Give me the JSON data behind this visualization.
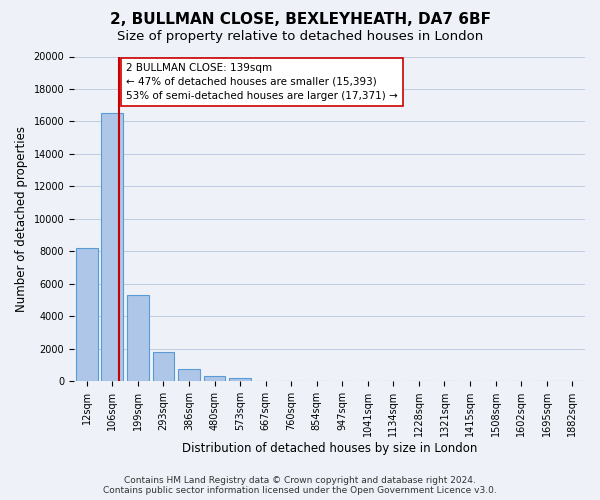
{
  "title": "2, BULLMAN CLOSE, BEXLEYHEATH, DA7 6BF",
  "subtitle": "Size of property relative to detached houses in London",
  "xlabel": "Distribution of detached houses by size in London",
  "ylabel": "Number of detached properties",
  "bar_values": [
    8200,
    16500,
    5300,
    1800,
    750,
    300,
    200,
    0,
    0,
    0,
    0,
    0,
    0,
    0,
    0,
    0,
    0,
    0,
    0,
    0
  ],
  "bar_labels": [
    "12sqm",
    "106sqm",
    "199sqm",
    "293sqm",
    "386sqm",
    "480sqm",
    "573sqm",
    "667sqm",
    "760sqm",
    "854sqm",
    "947sqm",
    "1041sqm",
    "1134sqm",
    "1228sqm",
    "1321sqm",
    "1415sqm",
    "1508sqm",
    "1602sqm",
    "1695sqm",
    "1882sqm"
  ],
  "ylim": [
    0,
    20000
  ],
  "yticks": [
    0,
    2000,
    4000,
    6000,
    8000,
    10000,
    12000,
    14000,
    16000,
    18000,
    20000
  ],
  "bar_color": "#aec6e8",
  "bar_edge_color": "#5b9bd5",
  "vline_x": 1.27,
  "vline_color": "#cc0000",
  "annotation_text": "2 BULLMAN CLOSE: 139sqm\n← 47% of detached houses are smaller (15,393)\n53% of semi-detached houses are larger (17,371) →",
  "annotation_box_color": "#ffffff",
  "annotation_box_edge": "#cc0000",
  "footer_line1": "Contains HM Land Registry data © Crown copyright and database right 2024.",
  "footer_line2": "Contains public sector information licensed under the Open Government Licence v3.0.",
  "background_color": "#eef2f8",
  "plot_bg_color": "#eef2f8",
  "grid_color": "#c0cce0",
  "title_fontsize": 11,
  "subtitle_fontsize": 9.5,
  "axis_label_fontsize": 8.5,
  "tick_fontsize": 7,
  "footer_fontsize": 6.5
}
